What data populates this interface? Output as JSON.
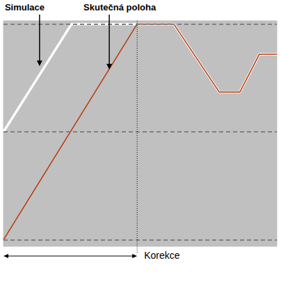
{
  "chart_data": {
    "type": "line",
    "xlim": [
      0,
      100
    ],
    "ylim": [
      -0.06,
      2.03
    ],
    "yticks": [
      0,
      1,
      2
    ],
    "grid": true,
    "tick_labels": false,
    "series": [
      {
        "name": "Simulace",
        "color": "#ffffff",
        "x": [
          0,
          24.9,
          48.9,
          62.3,
          78.9,
          86.5,
          93.6,
          100
        ],
        "values": [
          1,
          2,
          2,
          2,
          1.37,
          1.37,
          1.72,
          1.72
        ],
        "arrow_to": [
          13.2,
          1.61
        ]
      },
      {
        "name": "Skutečná poloha",
        "color": "#b83c10",
        "x": [
          0,
          48.9,
          62.3,
          78.9,
          86.5,
          93.6,
          100
        ],
        "values": [
          0,
          2,
          2,
          1.37,
          1.37,
          1.72,
          1.72
        ],
        "arrow_to": [
          38.7,
          1.58
        ]
      }
    ],
    "annotations": [
      {
        "text": "Korekce",
        "x_range": [
          0,
          48.9
        ]
      }
    ]
  }
}
